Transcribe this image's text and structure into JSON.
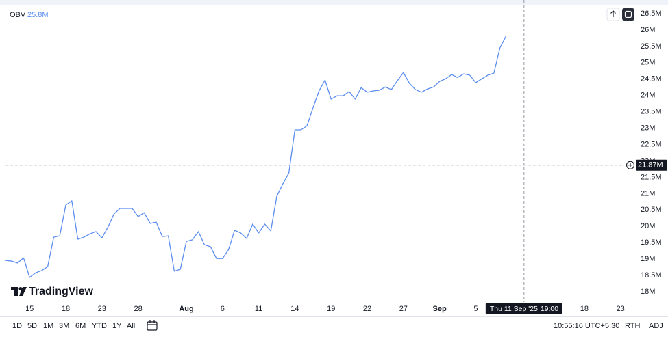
{
  "chart_data": {
    "type": "line",
    "title": "OBV",
    "last_value_label": "25.8M",
    "color": "#5b8def",
    "values": [
      18.96,
      18.94,
      18.88,
      19.04,
      18.44,
      18.58,
      18.65,
      18.77,
      19.67,
      19.71,
      20.65,
      20.78,
      19.61,
      19.67,
      19.77,
      19.84,
      19.65,
      19.98,
      20.38,
      20.55,
      20.55,
      20.55,
      20.3,
      20.42,
      20.09,
      20.13,
      19.69,
      19.71,
      18.63,
      18.69,
      19.54,
      19.59,
      19.84,
      19.44,
      19.38,
      19.02,
      19.02,
      19.29,
      19.88,
      19.8,
      19.63,
      20.07,
      19.8,
      20.07,
      19.86,
      20.92,
      21.3,
      21.63,
      22.95,
      22.95,
      23.07,
      23.62,
      24.14,
      24.47,
      23.89,
      23.99,
      23.99,
      24.12,
      23.89,
      24.24,
      24.1,
      24.14,
      24.16,
      24.26,
      24.18,
      24.45,
      24.7,
      24.37,
      24.18,
      24.1,
      24.2,
      24.26,
      24.43,
      24.51,
      24.64,
      24.55,
      24.66,
      24.62,
      24.39,
      24.51,
      24.62,
      24.68,
      25.45,
      25.81
    ],
    "xlim": [
      0,
      104.2
    ],
    "xticks": [
      {
        "value": 4,
        "label": "15"
      },
      {
        "value": 10,
        "label": "18"
      },
      {
        "value": 16,
        "label": "23"
      },
      {
        "value": 22,
        "label": "28"
      },
      {
        "value": 30,
        "label": "Aug"
      },
      {
        "value": 36,
        "label": "6"
      },
      {
        "value": 42,
        "label": "11"
      },
      {
        "value": 48,
        "label": "14"
      },
      {
        "value": 54,
        "label": "19"
      },
      {
        "value": 60,
        "label": "22"
      },
      {
        "value": 66,
        "label": "27"
      },
      {
        "value": 72,
        "label": "Sep"
      },
      {
        "value": 78,
        "label": "5"
      },
      {
        "value": 96,
        "label": "18"
      },
      {
        "value": 102,
        "label": "23"
      }
    ],
    "ylim": [
      17.73,
      26.75
    ],
    "yticks": [
      {
        "value": 18,
        "label": "18M"
      },
      {
        "value": 18.5,
        "label": "18.5M"
      },
      {
        "value": 19,
        "label": "19M"
      },
      {
        "value": 19.5,
        "label": "19.5M"
      },
      {
        "value": 20,
        "label": "20M"
      },
      {
        "value": 20.5,
        "label": "20.5M"
      },
      {
        "value": 21,
        "label": "21M"
      },
      {
        "value": 21.5,
        "label": "21.5M"
      },
      {
        "value": 22,
        "label": "22M"
      },
      {
        "value": 22.5,
        "label": "22.5M"
      },
      {
        "value": 23,
        "label": "23M"
      },
      {
        "value": 23.5,
        "label": "23.5M"
      },
      {
        "value": 24,
        "label": "24M"
      },
      {
        "value": 24.5,
        "label": "24.5M"
      },
      {
        "value": 25,
        "label": "25M"
      },
      {
        "value": 25.5,
        "label": "25.5M"
      },
      {
        "value": 26,
        "label": "26M"
      },
      {
        "value": 26.5,
        "label": "26.5M"
      }
    ],
    "grid": false,
    "crosshair": {
      "value": 21.87,
      "label": "21.87M",
      "x": 86,
      "date": "Thu 11 Sep '25",
      "time": "19:00"
    }
  },
  "brand": "TradingView",
  "toolbar": {
    "ranges": [
      "1D",
      "5D",
      "1M",
      "3M",
      "6M",
      "YTD",
      "1Y",
      "All"
    ],
    "clock": "10:55:16 UTC+5:30",
    "session": "RTH",
    "adjust": "ADJ"
  }
}
